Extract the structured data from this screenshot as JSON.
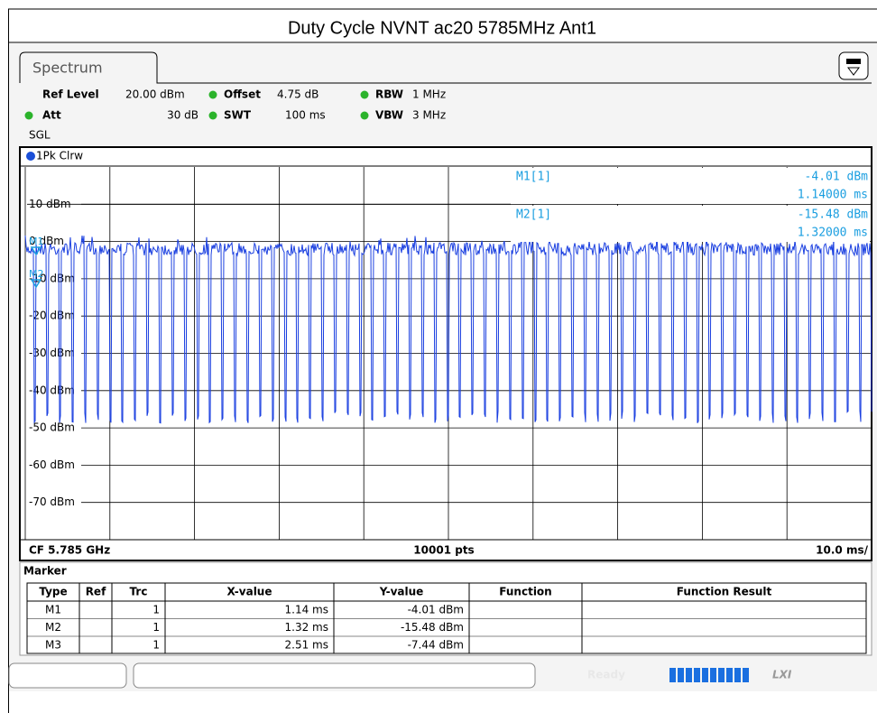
{
  "title": "Duty Cycle NVNT ac20 5785MHz Ant1",
  "tab": "Spectrum",
  "settings": [
    {
      "name": "Ref Level",
      "value": "20.00 dBm"
    },
    {
      "name": "Offset",
      "value": "4.75 dB"
    },
    {
      "name": "RBW",
      "value": "1 MHz"
    },
    {
      "name": "Att",
      "value": "30 dB"
    },
    {
      "name": "SWT",
      "value": "100 ms"
    },
    {
      "name": "VBW",
      "value": "3 MHz"
    }
  ],
  "mode": "SGL",
  "trace": "1Pk Clrw",
  "y_labels": [
    "10 dBm",
    "0 dBm",
    "-10 dBm",
    "-20 dBm",
    "-30 dBm",
    "-40 dBm",
    "-50 dBm",
    "-60 dBm",
    "-70 dBm"
  ],
  "markers": [
    {
      "label": "M1[1]",
      "level": "-4.01 dBm",
      "time": "1.14000 ms"
    },
    {
      "label": "M2[1]",
      "level": "-15.48 dBm",
      "time": "1.32000 ms"
    }
  ],
  "trace_markers": [
    "M1",
    "M2"
  ],
  "footer": {
    "center": "CF 5.785 GHz",
    "points": "10001 pts",
    "scale": "10.0 ms/"
  },
  "marker_table": {
    "title": "Marker",
    "headers": [
      "Type",
      "Ref",
      "Trc",
      "X-value",
      "Y-value",
      "Function",
      "Function Result"
    ],
    "rows": [
      {
        "type": "M1",
        "trc": "1",
        "x": "1.14 ms",
        "y": "-4.01 dBm"
      },
      {
        "type": "M2",
        "trc": "1",
        "x": "1.32 ms",
        "y": "-15.48 dBm"
      },
      {
        "type": "M3",
        "trc": "1",
        "x": "2.51 ms",
        "y": "-7.44 dBm"
      }
    ]
  },
  "status": {
    "state": "Ready",
    "logo": "LXI"
  }
}
